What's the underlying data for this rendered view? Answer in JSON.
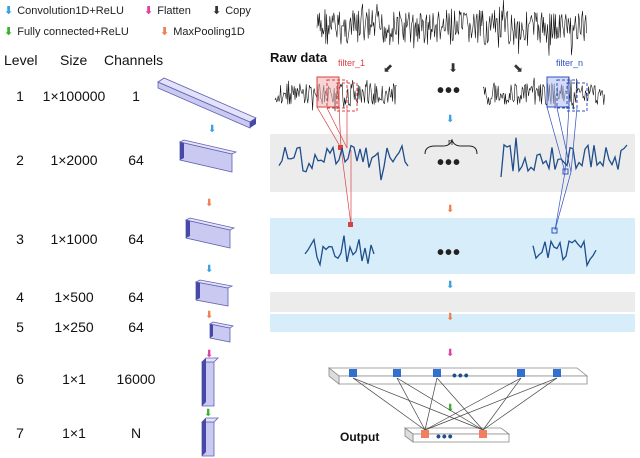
{
  "legend": {
    "conv": {
      "label": "Convolution1D+ReLU",
      "color": "#3aa0e0"
    },
    "flatten": {
      "label": "Flatten",
      "color": "#e040a0"
    },
    "copy": {
      "label": "Copy",
      "color": "#333333"
    },
    "fc": {
      "label": "Fully connected+ReLU",
      "color": "#3ab030"
    },
    "pool": {
      "label": "MaxPooling1D",
      "color": "#f08050"
    }
  },
  "table": {
    "headers": {
      "level": "Level",
      "size": "Size",
      "channels": "Channels"
    },
    "rows": [
      {
        "level": "1",
        "size": "1×100000",
        "channels": "1"
      },
      {
        "level": "2",
        "size": "1×2000",
        "channels": "64"
      },
      {
        "level": "3",
        "size": "1×1000",
        "channels": "64"
      },
      {
        "level": "4",
        "size": "1×500",
        "channels": "64"
      },
      {
        "level": "5",
        "size": "1×250",
        "channels": "64"
      },
      {
        "level": "6",
        "size": "1×1",
        "channels": "16000"
      },
      {
        "level": "7",
        "size": "1×1",
        "channels": "N"
      }
    ]
  },
  "diagram": {
    "raw_data_label": "Raw data",
    "filter_1_label": "filter_1",
    "filter_n_label": "filter_n",
    "brace_label": "n",
    "ellipsis": "•••",
    "output_label": "Output",
    "colors": {
      "band_gray": "#ececec",
      "band_blue": "#d7eefa",
      "signal": "#1f4e8c",
      "filter_red": "#d94040",
      "filter_blue": "#3050c0",
      "block_face": "#c9c9f2",
      "block_side": "#4848a8",
      "output_node": "#f08060",
      "hidden_node": "#3070d0"
    }
  }
}
